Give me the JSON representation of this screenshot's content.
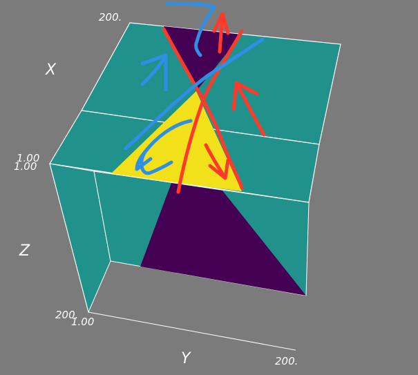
{
  "scene": {
    "background": "#7b7b7b",
    "colors": {
      "teal": "#21918c",
      "yellow": "#f2e01a",
      "purple": "#440154",
      "red_stroke": "#ff3a2a",
      "blue_stroke": "#2f8fe4",
      "box_line": "#ffffff"
    }
  },
  "axes": {
    "x_label": "X",
    "y_label": "Y",
    "z_label": "Z",
    "x_max_tick": "200.",
    "y_max_tick": "200.",
    "z_max_tick": "200.",
    "min_tick_a": "1.00",
    "min_tick_b": "1.00",
    "min_tick_c": "1.00"
  }
}
